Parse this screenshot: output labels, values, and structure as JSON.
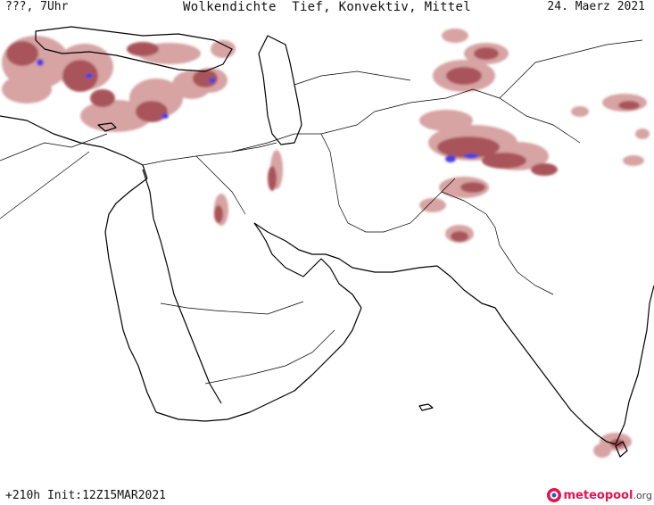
{
  "header": {
    "left": "???, 7Uhr",
    "title": "Wolkendichte  Tief, Konvektiv, Mittel",
    "right": "24. Maerz 2021"
  },
  "footer": {
    "run": "+210h Init:12Z15MAR2021",
    "logo_name": "meteopool",
    "logo_tld": ".org"
  },
  "colors": {
    "cloud_light": "#d39a9a",
    "cloud_dark": "#a0424a",
    "convective": "#3b2bd8",
    "coast": "#000000"
  },
  "icons": {
    "logo": "meteopool-logo-icon"
  }
}
